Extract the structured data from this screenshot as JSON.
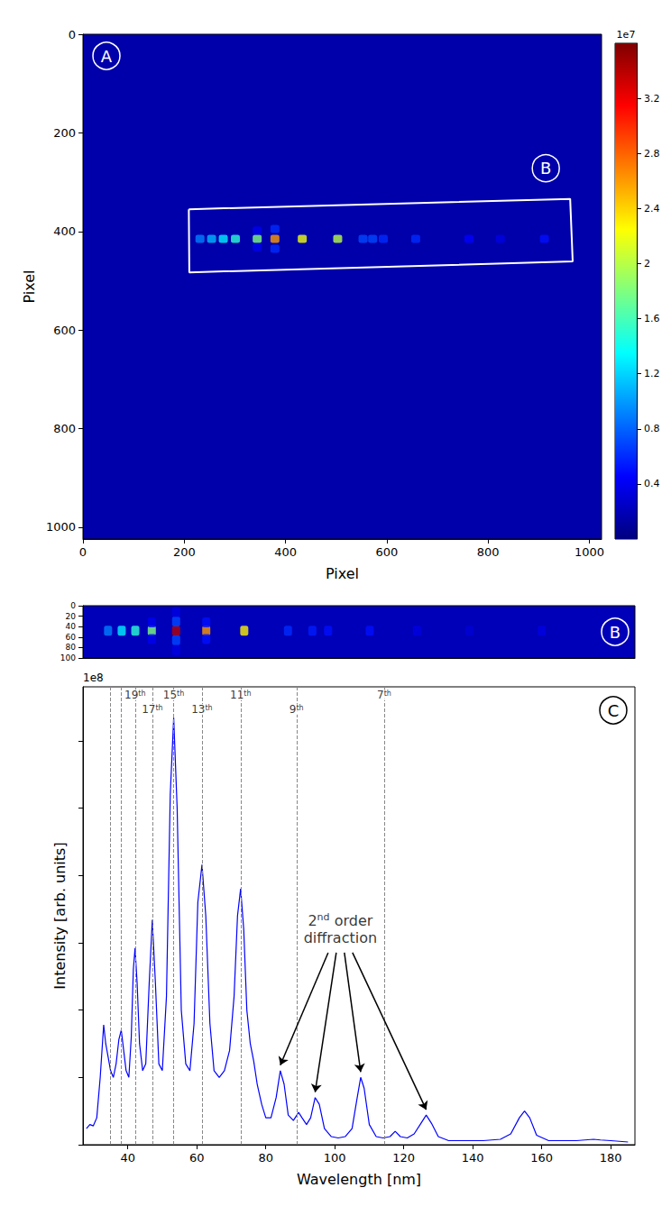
{
  "chart_data": [
    {
      "type": "heatmap",
      "panel_label": "A",
      "x_label": "Pixel",
      "y_label": "Pixel",
      "xlim": [
        0,
        1024
      ],
      "ylim": [
        1024,
        0
      ],
      "xticks": [
        0,
        200,
        400,
        600,
        800,
        1000
      ],
      "yticks": [
        0,
        200,
        400,
        600,
        800,
        1000
      ],
      "background_level": 0.15,
      "cells": [
        [
          231,
          415,
          0.9
        ],
        [
          254,
          415,
          1.1
        ],
        [
          277,
          415,
          1.3
        ],
        [
          301,
          415,
          1.5
        ],
        [
          344,
          415,
          1.8
        ],
        [
          379,
          415,
          2.6
        ],
        [
          433,
          415,
          2.2
        ],
        [
          503,
          415,
          2.0
        ],
        [
          553,
          415,
          0.7
        ],
        [
          572,
          415,
          0.7
        ],
        [
          593,
          415,
          0.6
        ],
        [
          657,
          415,
          0.6
        ],
        [
          762,
          415,
          0.45
        ],
        [
          824,
          415,
          0.35
        ],
        [
          911,
          415,
          0.5
        ],
        [
          379,
          395,
          0.6
        ],
        [
          379,
          435,
          0.6
        ],
        [
          344,
          398,
          0.4
        ],
        [
          344,
          432,
          0.4
        ]
      ],
      "colorbar": {
        "range": [
          0,
          3.6
        ],
        "ticks": [
          0.4,
          0.8,
          1.2,
          1.6,
          2.0,
          2.4,
          2.8,
          3.2
        ],
        "offset_label": "1e7"
      },
      "region": {
        "label": "B",
        "corners": [
          [
            209,
            355
          ],
          [
            962,
            334
          ],
          [
            967,
            461
          ],
          [
            210,
            483
          ]
        ]
      }
    },
    {
      "type": "heatmap",
      "panel_label": "B",
      "xlim": [
        0,
        770
      ],
      "ylim": [
        100,
        0
      ],
      "yticks": [
        0,
        20,
        40,
        60,
        80,
        100
      ],
      "tick_labels": "y",
      "background_level": 0.2,
      "cells": [
        [
          35,
          48,
          0.9
        ],
        [
          54,
          48,
          1.3
        ],
        [
          73,
          48,
          1.5
        ],
        [
          96,
          48,
          1.8
        ],
        [
          130,
          48,
          3.4
        ],
        [
          172,
          48,
          2.6
        ],
        [
          225,
          48,
          2.3
        ],
        [
          286,
          48,
          0.6
        ],
        [
          320,
          48,
          0.55
        ],
        [
          342,
          48,
          0.5
        ],
        [
          400,
          48,
          0.5
        ],
        [
          466,
          48,
          0.35
        ],
        [
          539,
          48,
          0.3
        ],
        [
          640,
          48,
          0.35
        ],
        [
          130,
          30,
          0.7
        ],
        [
          130,
          66,
          0.7
        ],
        [
          130,
          12,
          0.35
        ],
        [
          130,
          85,
          0.35
        ],
        [
          172,
          32,
          0.5
        ],
        [
          172,
          64,
          0.5
        ],
        [
          96,
          32,
          0.4
        ],
        [
          96,
          64,
          0.4
        ]
      ]
    },
    {
      "type": "line",
      "panel_label": "C",
      "x_label": "Wavelength [nm]",
      "y_label": "Intensity [arb. units]",
      "y_offset_label": "1e8",
      "xlim": [
        27,
        187
      ],
      "xticks": [
        40,
        60,
        80,
        100,
        120,
        140,
        160,
        180
      ],
      "ylim": [
        0,
        3.4
      ],
      "yticks": [
        0,
        0.5,
        1,
        1.5,
        2,
        2.5,
        3
      ],
      "tick_labels": "x",
      "color": "#0000ff",
      "x": [
        28,
        29,
        30,
        31,
        32,
        33,
        33.6,
        34.3,
        35,
        35.8,
        36.6,
        37.4,
        38.1,
        38.8,
        39.5,
        40.3,
        41,
        41.6,
        42.1,
        42.7,
        43.4,
        44.3,
        45.2,
        46.2,
        47.1,
        48,
        49,
        50,
        51.2,
        52.3,
        53.3,
        54.3,
        55.5,
        56.8,
        58,
        59.2,
        60.3,
        61.5,
        62.6,
        63.8,
        65,
        66.5,
        68,
        69.5,
        70.8,
        71.8,
        72.7,
        73.6,
        74.5,
        75.5,
        76.5,
        77.5,
        78.8,
        80,
        81.5,
        83,
        84.2,
        85.3,
        86.5,
        88,
        89.5,
        90.5,
        91.8,
        93,
        94.3,
        95.5,
        97,
        99,
        101,
        103,
        105,
        106.5,
        107.5,
        108.5,
        110,
        112,
        114,
        116,
        117.5,
        119,
        121,
        123,
        125,
        126.5,
        128,
        130,
        133,
        138,
        143,
        148,
        151,
        153.5,
        155,
        156.5,
        158.5,
        162,
        170,
        175,
        177,
        180,
        185
      ],
      "values": [
        0.12,
        0.15,
        0.14,
        0.2,
        0.5,
        0.89,
        0.75,
        0.65,
        0.55,
        0.5,
        0.6,
        0.78,
        0.85,
        0.7,
        0.55,
        0.5,
        0.8,
        1.3,
        1.46,
        1.2,
        0.75,
        0.55,
        0.6,
        1.2,
        1.67,
        1.2,
        0.6,
        0.55,
        1.1,
        2.6,
        3.17,
        2.5,
        1.0,
        0.6,
        0.55,
        0.9,
        1.8,
        2.08,
        1.7,
        0.9,
        0.55,
        0.5,
        0.55,
        0.7,
        1.1,
        1.7,
        1.9,
        1.6,
        1.0,
        0.75,
        0.62,
        0.45,
        0.3,
        0.2,
        0.2,
        0.35,
        0.55,
        0.45,
        0.22,
        0.18,
        0.24,
        0.2,
        0.15,
        0.2,
        0.35,
        0.3,
        0.12,
        0.06,
        0.05,
        0.06,
        0.12,
        0.35,
        0.5,
        0.42,
        0.15,
        0.06,
        0.05,
        0.06,
        0.1,
        0.06,
        0.05,
        0.08,
        0.16,
        0.22,
        0.16,
        0.06,
        0.03,
        0.03,
        0.03,
        0.04,
        0.08,
        0.2,
        0.25,
        0.2,
        0.07,
        0.03,
        0.03,
        0.04,
        0.035,
        0.03,
        0.02
      ],
      "guides": {
        "line_style": "dashed",
        "lines": [
          {
            "x": 34.8
          },
          {
            "x": 38.1
          },
          {
            "x": 42.1,
            "label": "19th"
          },
          {
            "x": 47.1,
            "label": "17th"
          },
          {
            "x": 53.3,
            "label": "15th"
          },
          {
            "x": 61.5,
            "label": "13th"
          },
          {
            "x": 72.7,
            "label": "11th"
          },
          {
            "x": 88.9,
            "label": "9th"
          },
          {
            "x": 114.3,
            "label": "7th"
          }
        ]
      },
      "annotation": {
        "text": [
          "2nd order",
          "diffraction"
        ],
        "x": 101.6,
        "y": 1.6,
        "arrows_to": [
          [
            84.2,
            0.55
          ],
          [
            94.3,
            0.35
          ],
          [
            107.5,
            0.5
          ],
          [
            126.5,
            0.22
          ]
        ]
      }
    }
  ]
}
